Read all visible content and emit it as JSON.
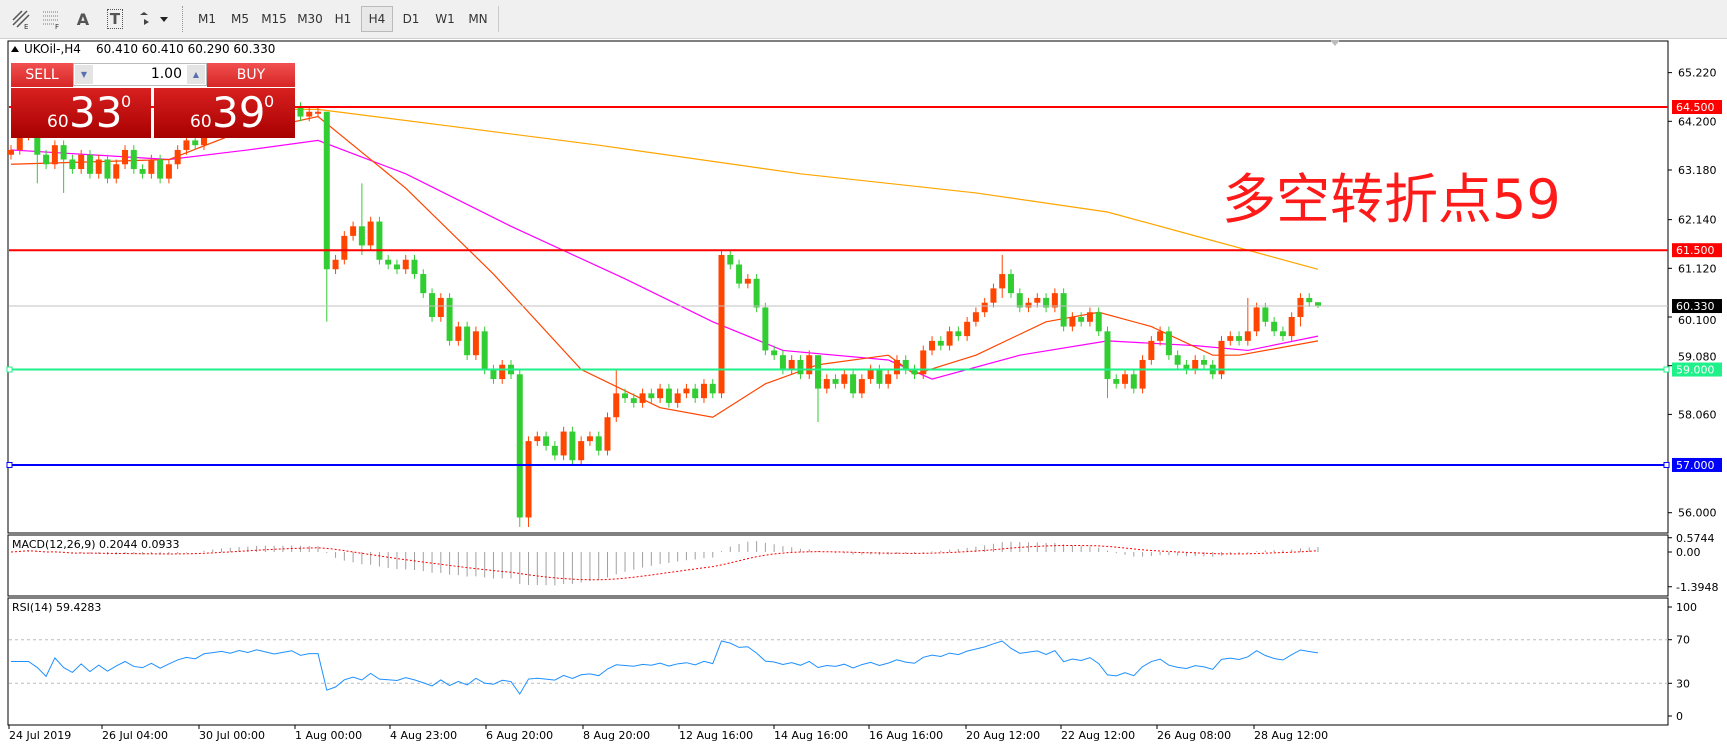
{
  "toolbar": {
    "tools": [
      {
        "icon": "fibonacci-expansion-icon"
      },
      {
        "icon": "fibonacci-fan-icon"
      },
      {
        "icon": "text-label-icon",
        "glyph": "A"
      },
      {
        "icon": "text-box-icon",
        "glyph": "T"
      },
      {
        "icon": "arrows-dropdown-icon"
      }
    ],
    "timeframes": [
      "M1",
      "M5",
      "M15",
      "M30",
      "H1",
      "H4",
      "D1",
      "W1",
      "MN"
    ],
    "active_timeframe": "H4"
  },
  "chart_header": {
    "symbol": "UKOil-,H4",
    "ohlc": "60.410 60.410 60.290 60.330"
  },
  "trade_panel": {
    "sell_label": "SELL",
    "buy_label": "BUY",
    "lot_value": "1.00",
    "sell_price_prefix": "60",
    "sell_price_main": "33",
    "sell_price_sup": "0",
    "buy_price_prefix": "60",
    "buy_price_main": "39",
    "buy_price_sup": "0"
  },
  "annotation": "多空转折点59",
  "colors": {
    "bull": "#FF4500",
    "bear": "#32CD32",
    "ma_fast": "#FF4500",
    "ma_mid": "#FF00FF",
    "ma_slow": "#FFA500",
    "resistance": "#FF0000",
    "pivot": "#1EF08A",
    "support": "#0000FF",
    "current": "#C0C0C0",
    "rsi": "#1E90FF",
    "macd_signal": "#FF0000",
    "macd_hist": "#A0A0A0"
  },
  "chart_data": {
    "type": "candlestick",
    "symbol": "UKOil-",
    "timeframe": "H4",
    "ylim": [
      55.5,
      65.6
    ],
    "price_ticks": [
      "65.220",
      "64.200",
      "63.180",
      "62.140",
      "61.120",
      "60.100",
      "59.080",
      "58.060",
      "56.000"
    ],
    "time_labels": [
      "24 Jul 2019",
      "26 Jul 04:00",
      "30 Jul 00:00",
      "1 Aug 00:00",
      "4 Aug 23:00",
      "6 Aug 20:00",
      "8 Aug 20:00",
      "12 Aug 16:00",
      "14 Aug 16:00",
      "16 Aug 16:00",
      "20 Aug 12:00",
      "22 Aug 12:00",
      "26 Aug 08:00",
      "28 Aug 12:00"
    ],
    "close": [
      63.6,
      63.9,
      64.0,
      63.5,
      63.3,
      63.7,
      63.4,
      63.2,
      63.5,
      63.1,
      63.4,
      63.0,
      63.3,
      63.6,
      63.2,
      63.1,
      63.4,
      63.0,
      63.3,
      63.6,
      63.8,
      63.7,
      64.1,
      64.2,
      64.3,
      64.2,
      64.4,
      64.3,
      64.5,
      64.4,
      64.3,
      64.4,
      64.5,
      64.3,
      64.4,
      64.4,
      61.1,
      61.3,
      61.8,
      62.0,
      61.6,
      62.1,
      61.3,
      61.2,
      61.1,
      61.3,
      61.0,
      60.6,
      60.1,
      60.5,
      59.6,
      59.9,
      59.3,
      59.8,
      59.0,
      58.8,
      59.1,
      58.9,
      55.9,
      57.5,
      57.6,
      57.4,
      57.2,
      57.7,
      57.1,
      57.5,
      57.6,
      57.3,
      58.0,
      58.5,
      58.4,
      58.3,
      58.5,
      58.4,
      58.6,
      58.3,
      58.5,
      58.6,
      58.4,
      58.7,
      58.5,
      61.4,
      61.2,
      60.8,
      60.9,
      60.3,
      59.4,
      59.3,
      59.0,
      59.2,
      58.9,
      59.3,
      58.6,
      58.8,
      58.7,
      58.9,
      58.5,
      58.8,
      59.0,
      58.7,
      58.9,
      59.2,
      59.0,
      58.9,
      59.4,
      59.6,
      59.5,
      59.8,
      59.7,
      60.0,
      60.2,
      60.4,
      60.7,
      61.0,
      60.6,
      60.3,
      60.4,
      60.5,
      60.3,
      60.6,
      59.9,
      60.1,
      60.0,
      60.2,
      59.8,
      58.8,
      58.7,
      58.9,
      58.6,
      59.2,
      59.6,
      59.8,
      59.3,
      59.1,
      59.0,
      59.2,
      59.1,
      58.9,
      59.6,
      59.7,
      59.6,
      59.8,
      60.3,
      60.0,
      59.8,
      59.7,
      60.1,
      60.5,
      60.41,
      60.33
    ],
    "last_bar": {
      "open": 60.41,
      "high": 60.41,
      "low": 60.29,
      "close": 60.33
    },
    "wick_extremes": [
      [
        3,
        64.1,
        62.9
      ],
      [
        6,
        63.8,
        62.7
      ],
      [
        36,
        64.4,
        60.0
      ],
      [
        40,
        62.9,
        61.4
      ],
      [
        58,
        59.0,
        55.7
      ],
      [
        59,
        57.6,
        55.7
      ],
      [
        69,
        59.0,
        57.9
      ],
      [
        81,
        61.5,
        58.4
      ],
      [
        92,
        59.3,
        57.9
      ],
      [
        113,
        61.4,
        60.5
      ],
      [
        125,
        59.9,
        58.4
      ],
      [
        141,
        60.5,
        59.5
      ],
      [
        147,
        60.6,
        59.9
      ]
    ],
    "ma_fast": [
      [
        0,
        63.3
      ],
      [
        18,
        63.4
      ],
      [
        25,
        63.9
      ],
      [
        35,
        64.3
      ],
      [
        45,
        62.8
      ],
      [
        55,
        61.0
      ],
      [
        65,
        59.0
      ],
      [
        74,
        58.2
      ],
      [
        80,
        58.0
      ],
      [
        86,
        58.7
      ],
      [
        92,
        59.1
      ],
      [
        100,
        59.3
      ],
      [
        103,
        58.9
      ],
      [
        110,
        59.3
      ],
      [
        118,
        60.0
      ],
      [
        124,
        60.2
      ],
      [
        130,
        59.9
      ],
      [
        137,
        59.3
      ],
      [
        140,
        59.3
      ],
      [
        149,
        59.6
      ]
    ],
    "ma_mid": [
      [
        0,
        63.6
      ],
      [
        18,
        63.4
      ],
      [
        27,
        63.6
      ],
      [
        35,
        63.8
      ],
      [
        45,
        63.1
      ],
      [
        57,
        62.0
      ],
      [
        70,
        60.9
      ],
      [
        80,
        60.0
      ],
      [
        88,
        59.4
      ],
      [
        100,
        59.2
      ],
      [
        105,
        58.8
      ],
      [
        115,
        59.3
      ],
      [
        125,
        59.6
      ],
      [
        135,
        59.5
      ],
      [
        141,
        59.4
      ],
      [
        149,
        59.7
      ]
    ],
    "ma_slow": [
      [
        30,
        64.45
      ],
      [
        35,
        64.45
      ],
      [
        50,
        64.1
      ],
      [
        67,
        63.7
      ],
      [
        90,
        63.1
      ],
      [
        110,
        62.7
      ],
      [
        125,
        62.3
      ],
      [
        135,
        61.8
      ],
      [
        149,
        61.1
      ]
    ],
    "hlines": [
      {
        "label": "64.500",
        "value": 64.5,
        "color": "#FF0000"
      },
      {
        "label": "61.500",
        "value": 61.5,
        "color": "#FF0000"
      },
      {
        "label": "60.330",
        "value": 60.33,
        "color": "#C0C0C0",
        "label_bg": "#000000"
      },
      {
        "label": "59.000",
        "value": 59.0,
        "color": "#1EF08A"
      },
      {
        "label": "57.000",
        "value": 57.0,
        "color": "#0000FF"
      }
    ],
    "macd": {
      "title": "MACD(12,26,9) 0.2044 0.0933",
      "ticks": [
        "0.5744",
        "0.00",
        "-1.3948"
      ],
      "range": [
        -1.3948,
        0.5744
      ]
    },
    "rsi": {
      "title": "RSI(14) 59.4283",
      "ticks": [
        "100",
        "70",
        "30",
        "0"
      ],
      "levels": [
        70,
        30
      ]
    }
  }
}
